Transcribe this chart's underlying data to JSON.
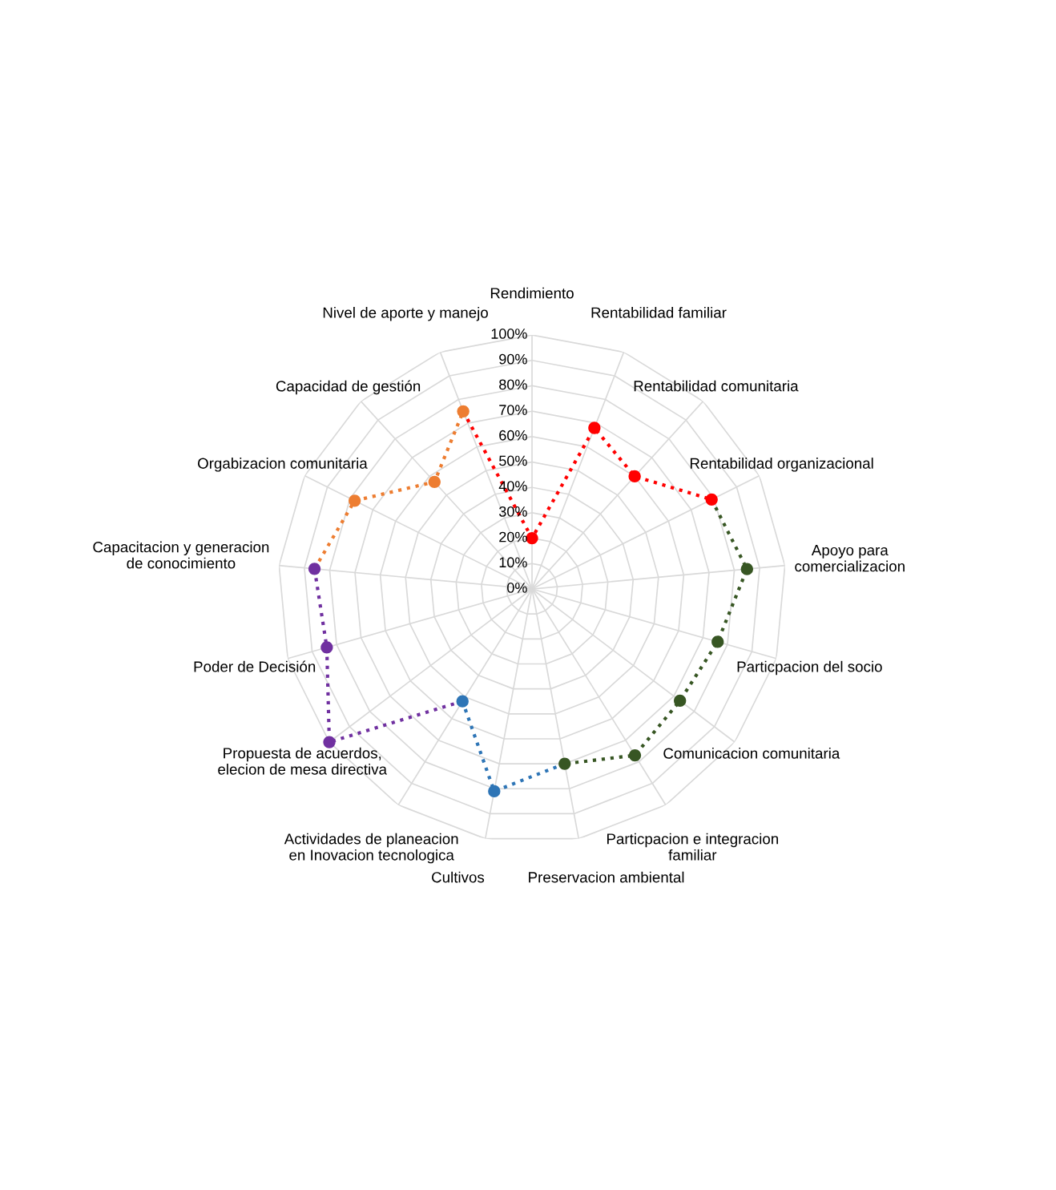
{
  "chart_data": {
    "type": "radar",
    "categories": [
      "Rendimiento",
      "Rentabilidad familiar",
      "Rentabilidad comunitaria",
      "Rentabilidad organizacional",
      "Apoyo para\ncomercializacion",
      "Particpacion del socio",
      "Comunicacion comunitaria",
      "Particpacion e integracion\nfamiliar",
      "Preservacion ambiental",
      "Cultivos",
      "Actividades de planeacion\nen Inovacion tecnologica",
      "Propuesta de acuerdos,\nelecion de mesa directiva",
      "Poder de Decisión",
      "Capacitacion y generacion\nde conocimiento",
      "Orgabizacion comunitaria",
      "Capacidad de gestión",
      "Nivel de aporte y manejo"
    ],
    "series": [
      {
        "color": "#ff0000",
        "values": [
          20,
          68,
          60,
          79,
          null,
          null,
          null,
          null,
          null,
          null,
          null,
          null,
          null,
          null,
          null,
          null,
          75
        ],
        "colors": [
          "#ff0000",
          "#ff0000",
          "#ff0000",
          "#ff0000",
          null,
          null,
          null,
          null,
          null,
          null,
          null,
          null,
          null,
          null,
          null,
          null,
          null
        ]
      },
      {
        "color": "#375623",
        "values": [
          null,
          null,
          null,
          79,
          85,
          76,
          73,
          77,
          70,
          null,
          null,
          null,
          null,
          null,
          null,
          null,
          null
        ],
        "colors": [
          null,
          null,
          null,
          null,
          "#375623",
          "#375623",
          "#375623",
          "#375623",
          "#375623",
          null,
          null,
          null,
          null,
          null,
          null,
          null,
          null
        ]
      },
      {
        "color": "#2e75b6",
        "values": [
          null,
          null,
          null,
          null,
          null,
          null,
          null,
          null,
          70,
          81,
          52,
          null,
          null,
          null,
          null,
          null,
          null
        ],
        "colors": [
          null,
          null,
          null,
          null,
          null,
          null,
          null,
          null,
          null,
          "#2e75b6",
          "#2e75b6",
          null,
          null,
          null,
          null,
          null,
          null
        ]
      },
      {
        "color": "#7030a0",
        "values": [
          null,
          null,
          null,
          null,
          null,
          null,
          null,
          null,
          null,
          null,
          52,
          100,
          84,
          86,
          null,
          null,
          null
        ],
        "colors": [
          null,
          null,
          null,
          null,
          null,
          null,
          null,
          null,
          null,
          null,
          null,
          "#7030a0",
          "#7030a0",
          "#7030a0",
          null,
          null,
          null
        ]
      },
      {
        "color": "#ed7d31",
        "values": [
          null,
          null,
          null,
          null,
          null,
          null,
          null,
          null,
          null,
          null,
          null,
          null,
          null,
          86,
          78,
          57,
          75
        ],
        "colors": [
          null,
          null,
          null,
          null,
          null,
          null,
          null,
          null,
          null,
          null,
          null,
          null,
          null,
          null,
          "#ed7d31",
          "#ed7d31",
          "#ed7d31"
        ]
      }
    ],
    "ylim": [
      0,
      100
    ],
    "yticks": [
      {
        "value": 0,
        "label": "0%"
      },
      {
        "value": 10,
        "label": "10%"
      },
      {
        "value": 20,
        "label": "20%"
      },
      {
        "value": 30,
        "label": "30%"
      },
      {
        "value": 40,
        "label": "40%"
      },
      {
        "value": 50,
        "label": "50%"
      },
      {
        "value": 60,
        "label": "60%"
      },
      {
        "value": 70,
        "label": "70%"
      },
      {
        "value": 80,
        "label": "80%"
      },
      {
        "value": 90,
        "label": "90%"
      },
      {
        "value": 100,
        "label": "100%"
      }
    ],
    "grid": true,
    "marker": "circle",
    "line_style": "dotted"
  }
}
